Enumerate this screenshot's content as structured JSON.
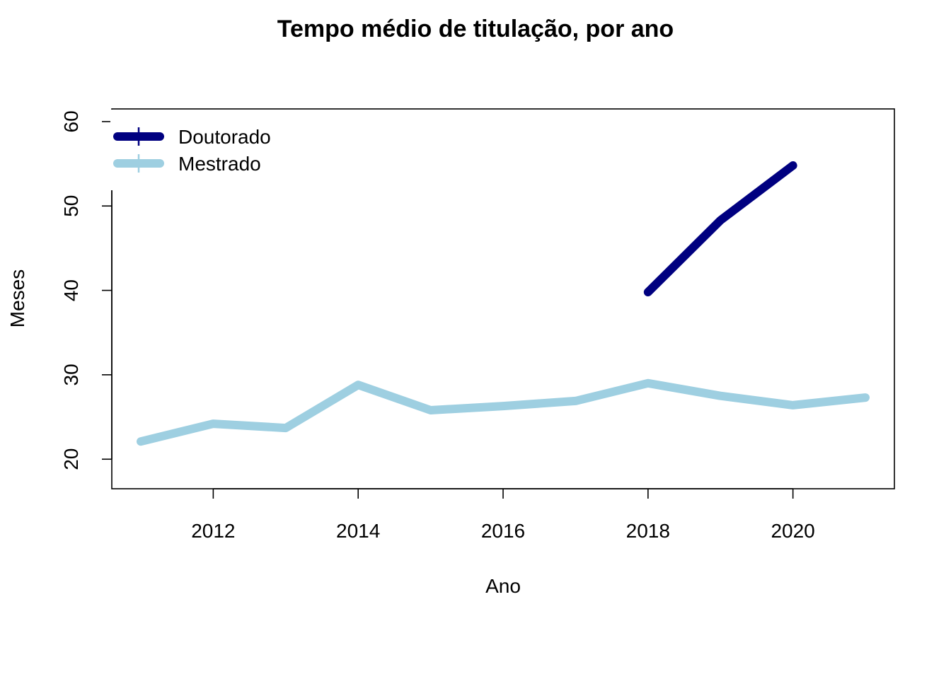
{
  "chart_data": {
    "type": "line",
    "title": "Tempo médio de titulação, por ano",
    "xlabel": "Ano",
    "ylabel": "Meses",
    "xlim": [
      2010.6,
      2021.4
    ],
    "ylim": [
      16.5,
      61.5
    ],
    "x_ticks": [
      2012,
      2014,
      2016,
      2018,
      2020
    ],
    "y_ticks": [
      20,
      30,
      40,
      50,
      60
    ],
    "grid": false,
    "legend_position": "top-left",
    "series": [
      {
        "name": "Doutorado",
        "color": "#000080",
        "x": [
          2018,
          2019,
          2020
        ],
        "values": [
          39.8,
          48.3,
          54.8
        ]
      },
      {
        "name": "Mestrado",
        "color": "#9ecfe1",
        "x": [
          2011,
          2012,
          2013,
          2014,
          2015,
          2016,
          2017,
          2018,
          2019,
          2020,
          2021
        ],
        "values": [
          22.1,
          24.2,
          23.7,
          28.8,
          25.8,
          26.3,
          26.9,
          29.0,
          27.5,
          26.4,
          27.3
        ]
      }
    ]
  }
}
